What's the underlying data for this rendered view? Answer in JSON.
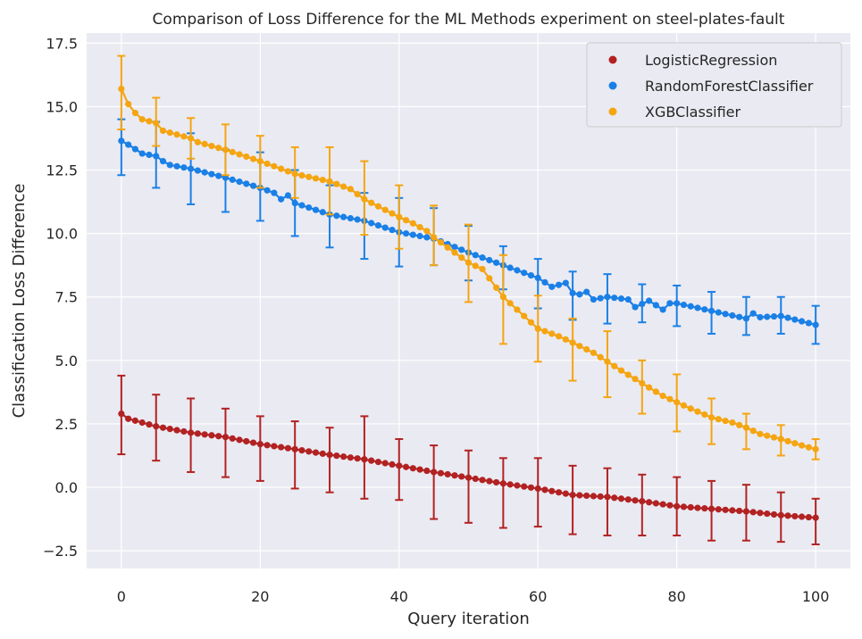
{
  "chart_data": {
    "type": "scatter",
    "title": "Comparison of Loss Difference for the ML Methods experiment on steel-plates-fault",
    "xlabel": "Query iteration",
    "ylabel": "Classification Loss Difference",
    "xlim": [
      -5,
      105
    ],
    "ylim": [
      -3.2,
      17.9
    ],
    "xticks": [
      0,
      20,
      40,
      60,
      80,
      100
    ],
    "yticks": [
      -2.5,
      0.0,
      2.5,
      5.0,
      7.5,
      10.0,
      12.5,
      15.0,
      17.5
    ],
    "xtick_labels": [
      "0",
      "20",
      "40",
      "60",
      "80",
      "100"
    ],
    "ytick_labels": [
      "−2.5",
      "0.0",
      "2.5",
      "5.0",
      "7.5",
      "10.0",
      "12.5",
      "15.0",
      "17.5"
    ],
    "grid": true,
    "background": "#eaeaf2",
    "legend_position": "top-right",
    "series": [
      {
        "name": "LogisticRegression",
        "color": "#b22222",
        "anchors": [
          [
            0,
            2.9
          ],
          [
            1,
            2.7
          ],
          [
            5,
            2.4
          ],
          [
            10,
            2.15
          ],
          [
            15,
            1.98
          ],
          [
            20,
            1.7
          ],
          [
            25,
            1.5
          ],
          [
            30,
            1.28
          ],
          [
            35,
            1.1
          ],
          [
            40,
            0.85
          ],
          [
            45,
            0.6
          ],
          [
            50,
            0.38
          ],
          [
            55,
            0.15
          ],
          [
            60,
            -0.05
          ],
          [
            65,
            -0.3
          ],
          [
            70,
            -0.38
          ],
          [
            75,
            -0.55
          ],
          [
            80,
            -0.75
          ],
          [
            85,
            -0.85
          ],
          [
            90,
            -0.95
          ],
          [
            95,
            -1.1
          ],
          [
            100,
            -1.2
          ]
        ],
        "error_bars": [
          [
            0,
            1.3,
            4.4
          ],
          [
            5,
            1.05,
            3.65
          ],
          [
            10,
            0.6,
            3.5
          ],
          [
            15,
            0.4,
            3.1
          ],
          [
            20,
            0.25,
            2.8
          ],
          [
            25,
            -0.05,
            2.6
          ],
          [
            30,
            -0.2,
            2.35
          ],
          [
            35,
            -0.45,
            2.8
          ],
          [
            40,
            -0.5,
            1.9
          ],
          [
            45,
            -1.25,
            1.65
          ],
          [
            50,
            -1.4,
            1.45
          ],
          [
            55,
            -1.6,
            1.15
          ],
          [
            60,
            -1.55,
            1.15
          ],
          [
            65,
            -1.85,
            0.85
          ],
          [
            70,
            -1.9,
            0.75
          ],
          [
            75,
            -1.9,
            0.5
          ],
          [
            80,
            -1.9,
            0.4
          ],
          [
            85,
            -2.1,
            0.25
          ],
          [
            90,
            -2.1,
            0.1
          ],
          [
            95,
            -2.15,
            -0.2
          ],
          [
            100,
            -2.25,
            -0.45
          ]
        ]
      },
      {
        "name": "RandomForestClassifier",
        "color": "#1a80e6",
        "anchors": [
          [
            0,
            13.65
          ],
          [
            1,
            13.5
          ],
          [
            3,
            13.15
          ],
          [
            5,
            13.05
          ],
          [
            6,
            12.85
          ],
          [
            7,
            12.7
          ],
          [
            10,
            12.55
          ],
          [
            15,
            12.2
          ],
          [
            20,
            11.8
          ],
          [
            22,
            11.6
          ],
          [
            23,
            11.35
          ],
          [
            24,
            11.5
          ],
          [
            25,
            11.2
          ],
          [
            30,
            10.75
          ],
          [
            35,
            10.5
          ],
          [
            40,
            10.05
          ],
          [
            45,
            9.8
          ],
          [
            50,
            9.25
          ],
          [
            55,
            8.75
          ],
          [
            60,
            8.25
          ],
          [
            62,
            7.9
          ],
          [
            64,
            8.05
          ],
          [
            65,
            7.65
          ],
          [
            66,
            7.6
          ],
          [
            67,
            7.7
          ],
          [
            68,
            7.4
          ],
          [
            70,
            7.5
          ],
          [
            73,
            7.4
          ],
          [
            74,
            7.1
          ],
          [
            76,
            7.35
          ],
          [
            78,
            7.0
          ],
          [
            79,
            7.25
          ],
          [
            80,
            7.25
          ],
          [
            85,
            6.95
          ],
          [
            90,
            6.65
          ],
          [
            91,
            6.85
          ],
          [
            92,
            6.7
          ],
          [
            95,
            6.75
          ],
          [
            100,
            6.4
          ]
        ],
        "error_bars": [
          [
            0,
            12.3,
            14.5
          ],
          [
            5,
            11.8,
            14.4
          ],
          [
            10,
            11.15,
            13.95
          ],
          [
            15,
            10.85,
            13.3
          ],
          [
            20,
            10.5,
            13.2
          ],
          [
            25,
            9.9,
            12.5
          ],
          [
            30,
            9.45,
            11.9
          ],
          [
            35,
            9.0,
            11.6
          ],
          [
            40,
            8.7,
            11.4
          ],
          [
            45,
            8.75,
            11.0
          ],
          [
            50,
            8.15,
            10.3
          ],
          [
            55,
            7.8,
            9.5
          ],
          [
            60,
            7.05,
            9.0
          ],
          [
            65,
            6.6,
            8.5
          ],
          [
            70,
            6.45,
            8.4
          ],
          [
            75,
            6.5,
            8.0
          ],
          [
            80,
            6.35,
            7.95
          ],
          [
            85,
            6.05,
            7.7
          ],
          [
            90,
            6.0,
            7.5
          ],
          [
            95,
            6.05,
            7.5
          ],
          [
            100,
            5.65,
            7.15
          ]
        ]
      },
      {
        "name": "XGBClassifier",
        "color": "#f5a511",
        "anchors": [
          [
            0,
            15.7
          ],
          [
            1,
            15.1
          ],
          [
            2,
            14.75
          ],
          [
            3,
            14.5
          ],
          [
            5,
            14.35
          ],
          [
            6,
            14.05
          ],
          [
            10,
            13.75
          ],
          [
            11,
            13.6
          ],
          [
            15,
            13.3
          ],
          [
            20,
            12.85
          ],
          [
            25,
            12.35
          ],
          [
            30,
            12.05
          ],
          [
            33,
            11.75
          ],
          [
            35,
            11.35
          ],
          [
            40,
            10.65
          ],
          [
            42,
            10.4
          ],
          [
            44,
            10.1
          ],
          [
            45,
            9.85
          ],
          [
            48,
            9.25
          ],
          [
            50,
            8.85
          ],
          [
            52,
            8.6
          ],
          [
            55,
            7.5
          ],
          [
            60,
            6.25
          ],
          [
            63,
            5.95
          ],
          [
            65,
            5.7
          ],
          [
            68,
            5.3
          ],
          [
            70,
            4.95
          ],
          [
            72,
            4.6
          ],
          [
            75,
            4.1
          ],
          [
            78,
            3.6
          ],
          [
            80,
            3.35
          ],
          [
            82,
            3.1
          ],
          [
            85,
            2.75
          ],
          [
            88,
            2.55
          ],
          [
            90,
            2.35
          ],
          [
            92,
            2.1
          ],
          [
            95,
            1.9
          ],
          [
            98,
            1.65
          ],
          [
            100,
            1.5
          ]
        ],
        "error_bars": [
          [
            0,
            14.1,
            17.0
          ],
          [
            5,
            13.45,
            15.35
          ],
          [
            10,
            12.95,
            14.55
          ],
          [
            15,
            12.3,
            14.3
          ],
          [
            20,
            11.8,
            13.85
          ],
          [
            25,
            11.4,
            13.4
          ],
          [
            30,
            10.75,
            13.4
          ],
          [
            35,
            9.95,
            12.85
          ],
          [
            40,
            9.4,
            11.9
          ],
          [
            45,
            8.75,
            11.1
          ],
          [
            50,
            7.3,
            10.35
          ],
          [
            55,
            5.65,
            9.15
          ],
          [
            60,
            4.95,
            7.55
          ],
          [
            65,
            4.2,
            6.65
          ],
          [
            70,
            3.55,
            6.15
          ],
          [
            75,
            2.9,
            5.0
          ],
          [
            80,
            2.2,
            4.45
          ],
          [
            85,
            1.7,
            3.5
          ],
          [
            90,
            1.5,
            2.9
          ],
          [
            95,
            1.25,
            2.45
          ],
          [
            100,
            1.1,
            1.9
          ]
        ]
      }
    ]
  }
}
